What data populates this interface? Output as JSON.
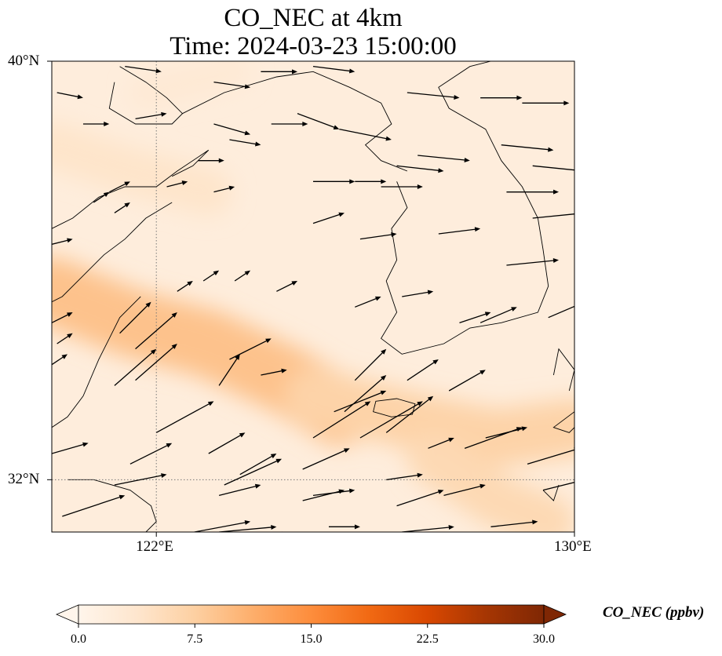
{
  "title_line1": "CO_NEC at 4km",
  "title_line2": "Time: 2024-03-23 15:00:00",
  "axes": {
    "lat_ticks": [
      {
        "value": 40,
        "label": "40°N"
      },
      {
        "value": 32,
        "label": "32°N"
      }
    ],
    "lon_ticks": [
      {
        "value": 122,
        "label": "122°E"
      },
      {
        "value": 130,
        "label": "130°E"
      }
    ],
    "lon_range": [
      120,
      130
    ],
    "lat_range": [
      31,
      40
    ],
    "gridlines": "dotted"
  },
  "colorbar": {
    "label": "CO_NEC (ppbv)",
    "min": 0,
    "max": 30,
    "ticks": [
      "0.0",
      "7.5",
      "15.0",
      "22.5",
      "30.0"
    ],
    "extend": "both",
    "colormap": [
      "#fff5eb",
      "#fee6ce",
      "#fdd0a2",
      "#fdae6b",
      "#fd8d3c",
      "#f16913",
      "#d94801",
      "#a63603",
      "#7f2704"
    ]
  },
  "field_bands": [
    {
      "path": [
        [
          120,
          35.6
        ],
        [
          121.5,
          35.0
        ],
        [
          123,
          34.6
        ],
        [
          124.5,
          33.9
        ],
        [
          125.5,
          33.3
        ]
      ],
      "width_deg": 1.3,
      "level": 9
    },
    {
      "path": [
        [
          125.0,
          33.6
        ],
        [
          127,
          33.1
        ],
        [
          128.5,
          32.8
        ],
        [
          130,
          33.0
        ]
      ],
      "width_deg": 1.1,
      "level": 7
    },
    {
      "path": [
        [
          127.3,
          32.4
        ],
        [
          128.5,
          31.6
        ],
        [
          129.5,
          31.2
        ]
      ],
      "width_deg": 1.0,
      "level": 6
    },
    {
      "path": [
        [
          120,
          38.4
        ],
        [
          121.5,
          37.9
        ],
        [
          123,
          37.5
        ]
      ],
      "width_deg": 0.9,
      "level": 4
    },
    {
      "path": [
        [
          121.8,
          39.4
        ],
        [
          123.5,
          39.8
        ]
      ],
      "width_deg": 0.6,
      "level": 3
    }
  ],
  "wind_vectors": [
    [
      120.1,
      39.4,
      0.25,
      -0.05
    ],
    [
      120.6,
      38.8,
      0.25,
      0.0
    ],
    [
      121.6,
      38.9,
      0.3,
      0.05
    ],
    [
      121.4,
      39.9,
      0.35,
      -0.05
    ],
    [
      123.1,
      39.6,
      0.35,
      -0.05
    ],
    [
      124.0,
      39.8,
      0.35,
      0.0
    ],
    [
      125.0,
      39.9,
      0.4,
      -0.05
    ],
    [
      124.7,
      39.0,
      0.4,
      -0.15
    ],
    [
      124.2,
      38.8,
      0.35,
      0.0
    ],
    [
      123.1,
      38.8,
      0.35,
      -0.1
    ],
    [
      123.4,
      38.5,
      0.3,
      -0.05
    ],
    [
      125.5,
      38.7,
      0.5,
      -0.1
    ],
    [
      126.8,
      39.4,
      0.5,
      -0.05
    ],
    [
      128.2,
      39.3,
      0.4,
      0.0
    ],
    [
      129.0,
      39.2,
      0.45,
      0.0
    ],
    [
      128.6,
      38.4,
      0.5,
      -0.05
    ],
    [
      129.2,
      38.0,
      0.5,
      -0.05
    ],
    [
      130.0,
      38.2,
      0.3,
      0.0
    ],
    [
      122.8,
      38.1,
      0.25,
      0.0
    ],
    [
      122.2,
      37.6,
      0.2,
      0.05
    ],
    [
      123.1,
      37.5,
      0.2,
      0.05
    ],
    [
      125.0,
      37.7,
      0.4,
      0.0
    ],
    [
      125.8,
      37.7,
      0.3,
      0.0
    ],
    [
      126.3,
      37.6,
      0.4,
      0.0
    ],
    [
      126.6,
      38.0,
      0.45,
      -0.05
    ],
    [
      127.0,
      38.2,
      0.5,
      -0.05
    ],
    [
      128.7,
      37.5,
      0.5,
      0.0
    ],
    [
      129.2,
      37.0,
      0.5,
      0.05
    ],
    [
      120.8,
      37.3,
      0.15,
      0.1
    ],
    [
      121.2,
      37.1,
      0.15,
      0.1
    ],
    [
      120.0,
      36.5,
      0.2,
      0.05
    ],
    [
      121.1,
      37.5,
      0.2,
      0.1
    ],
    [
      125.0,
      36.9,
      0.3,
      0.1
    ],
    [
      125.9,
      36.6,
      0.35,
      0.05
    ],
    [
      127.4,
      36.7,
      0.4,
      0.05
    ],
    [
      128.7,
      36.1,
      0.5,
      0.05
    ],
    [
      122.4,
      35.6,
      0.15,
      0.1
    ],
    [
      122.9,
      35.8,
      0.15,
      0.1
    ],
    [
      123.5,
      35.8,
      0.15,
      0.1
    ],
    [
      124.3,
      35.6,
      0.2,
      0.1
    ],
    [
      125.8,
      35.3,
      0.25,
      0.1
    ],
    [
      126.7,
      35.5,
      0.3,
      0.05
    ],
    [
      127.8,
      35.0,
      0.3,
      0.1
    ],
    [
      128.2,
      35.0,
      0.35,
      0.15
    ],
    [
      129.5,
      35.1,
      0.35,
      0.15
    ],
    [
      130.0,
      34.6,
      0.2,
      0.1
    ],
    [
      120.0,
      35.0,
      0.2,
      0.1
    ],
    [
      121.3,
      34.8,
      0.3,
      0.3
    ],
    [
      121.6,
      34.5,
      0.4,
      0.35
    ],
    [
      120.1,
      34.6,
      0.15,
      0.1
    ],
    [
      120.0,
      34.2,
      0.15,
      0.1
    ],
    [
      121.2,
      33.8,
      0.4,
      0.35
    ],
    [
      121.6,
      33.9,
      0.4,
      0.35
    ],
    [
      123.4,
      34.3,
      0.4,
      0.2
    ],
    [
      123.2,
      33.8,
      0.2,
      0.3
    ],
    [
      124.0,
      34.0,
      0.25,
      0.05
    ],
    [
      125.8,
      33.9,
      0.3,
      0.3
    ],
    [
      126.8,
      33.9,
      0.3,
      0.2
    ],
    [
      127.6,
      33.7,
      0.35,
      0.2
    ],
    [
      125.4,
      33.3,
      0.5,
      0.2
    ],
    [
      125.0,
      32.8,
      0.55,
      0.35
    ],
    [
      125.9,
      32.8,
      0.6,
      0.35
    ],
    [
      127.2,
      32.6,
      0.25,
      0.1
    ],
    [
      128.3,
      32.8,
      0.4,
      0.1
    ],
    [
      129.1,
      32.3,
      0.5,
      0.15
    ],
    [
      122.0,
      32.9,
      0.55,
      0.3
    ],
    [
      123.0,
      32.5,
      0.35,
      0.2
    ],
    [
      123.6,
      32.1,
      0.35,
      0.2
    ],
    [
      124.8,
      32.2,
      0.45,
      0.2
    ],
    [
      125.6,
      33.3,
      0.4,
      0.35
    ],
    [
      126.4,
      32.9,
      0.45,
      0.35
    ],
    [
      127.9,
      32.6,
      0.55,
      0.2
    ],
    [
      120.0,
      32.5,
      0.35,
      0.1
    ],
    [
      121.5,
      32.3,
      0.4,
      0.2
    ],
    [
      123.3,
      31.9,
      0.55,
      0.25
    ],
    [
      124.8,
      31.6,
      0.4,
      0.1
    ],
    [
      126.6,
      31.5,
      0.45,
      0.15
    ],
    [
      127.5,
      31.7,
      0.4,
      0.1
    ],
    [
      129.4,
      31.8,
      0.4,
      0.1
    ],
    [
      130.0,
      32.0,
      0.2,
      0.0
    ],
    [
      121.2,
      31.9,
      0.5,
      0.1
    ],
    [
      123.2,
      31.7,
      0.4,
      0.1
    ],
    [
      125.0,
      31.7,
      0.4,
      0.05
    ],
    [
      126.4,
      32.0,
      0.35,
      0.05
    ],
    [
      124.4,
      31.0,
      0.35,
      -0.1
    ],
    [
      127.4,
      30.4,
      0.3,
      0.15
    ],
    [
      128.4,
      31.1,
      0.45,
      0.05
    ],
    [
      129.0,
      30.9,
      0.45,
      0.0
    ],
    [
      120.2,
      31.3,
      0.6,
      0.2
    ],
    [
      122.2,
      30.9,
      0.8,
      0.15
    ],
    [
      123.2,
      31.0,
      0.55,
      0.05
    ],
    [
      125.3,
      31.1,
      0.3,
      0.0
    ],
    [
      126.7,
      31.0,
      0.5,
      0.05
    ],
    [
      127.7,
      30.7,
      0.4,
      0.05
    ],
    [
      129.4,
      30.6,
      0.45,
      0.1
    ]
  ],
  "coastlines": [
    [
      [
        120.0,
        36.8
      ],
      [
        120.4,
        37.0
      ],
      [
        120.9,
        37.4
      ],
      [
        121.4,
        37.6
      ],
      [
        122.0,
        37.6
      ],
      [
        122.4,
        37.9
      ],
      [
        123.0,
        38.3
      ],
      [
        122.7,
        38.0
      ],
      [
        122.3,
        37.8
      ]
    ],
    [
      [
        120.0,
        35.4
      ],
      [
        120.2,
        35.5
      ],
      [
        120.6,
        35.9
      ],
      [
        121.0,
        36.3
      ],
      [
        121.4,
        36.6
      ],
      [
        121.8,
        37.0
      ],
      [
        122.3,
        37.3
      ]
    ],
    [
      [
        120.0,
        33.0
      ],
      [
        120.3,
        33.2
      ],
      [
        120.6,
        33.6
      ],
      [
        120.9,
        34.3
      ],
      [
        121.1,
        34.7
      ],
      [
        121.3,
        35.1
      ],
      [
        121.7,
        35.5
      ]
    ],
    [
      [
        121.3,
        39.9
      ],
      [
        121.8,
        39.6
      ],
      [
        122.2,
        39.3
      ],
      [
        122.5,
        39.0
      ],
      [
        122.3,
        38.8
      ],
      [
        121.6,
        38.8
      ],
      [
        121.1,
        39.1
      ],
      [
        121.2,
        39.6
      ]
    ],
    [
      [
        122.5,
        39.0
      ],
      [
        123.3,
        39.4
      ],
      [
        124.3,
        39.7
      ],
      [
        125.0,
        39.8
      ],
      [
        125.7,
        39.5
      ],
      [
        126.3,
        39.2
      ],
      [
        126.5,
        38.8
      ],
      [
        126.0,
        38.4
      ],
      [
        126.3,
        38.1
      ],
      [
        126.8,
        37.9
      ]
    ],
    [
      [
        126.6,
        37.7
      ],
      [
        126.8,
        37.2
      ],
      [
        126.5,
        36.8
      ],
      [
        126.6,
        36.2
      ],
      [
        126.4,
        35.8
      ],
      [
        126.6,
        35.2
      ],
      [
        126.3,
        34.7
      ],
      [
        126.7,
        34.4
      ],
      [
        127.5,
        34.6
      ],
      [
        128.0,
        34.9
      ],
      [
        128.6,
        35.0
      ],
      [
        129.3,
        35.2
      ],
      [
        129.5,
        35.7
      ],
      [
        129.4,
        36.4
      ],
      [
        129.3,
        37.0
      ],
      [
        129.0,
        37.6
      ],
      [
        128.6,
        38.1
      ],
      [
        128.3,
        38.7
      ],
      [
        127.6,
        39.1
      ],
      [
        127.4,
        39.5
      ],
      [
        128.0,
        39.9
      ],
      [
        128.4,
        40.0
      ]
    ],
    [
      [
        129.9,
        33.7
      ],
      [
        130.0,
        34.1
      ],
      [
        129.7,
        34.5
      ],
      [
        129.6,
        34.0
      ]
    ],
    [
      [
        130.0,
        33.3
      ],
      [
        129.6,
        33.0
      ],
      [
        129.9,
        32.9
      ],
      [
        130.0,
        33.0
      ]
    ],
    [
      [
        129.4,
        31.8
      ],
      [
        129.6,
        31.6
      ],
      [
        129.7,
        31.9
      ]
    ],
    [
      [
        120.3,
        32.0
      ],
      [
        120.8,
        32.0
      ],
      [
        121.5,
        31.8
      ],
      [
        121.9,
        31.5
      ],
      [
        122.0,
        31.2
      ],
      [
        121.8,
        31.0
      ],
      [
        122.0,
        30.9
      ]
    ]
  ],
  "islands": [
    [
      [
        126.2,
        33.5
      ],
      [
        126.6,
        33.55
      ],
      [
        126.95,
        33.45
      ],
      [
        126.9,
        33.25
      ],
      [
        126.5,
        33.2
      ],
      [
        126.15,
        33.3
      ]
    ]
  ]
}
